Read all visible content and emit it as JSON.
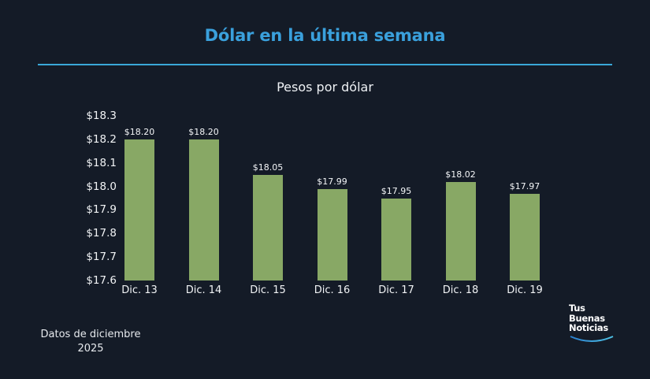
{
  "header": {
    "title": "Dólar en la última semana",
    "subtitle": "Pesos por dólar"
  },
  "footer": {
    "note_line1": "Datos de diciembre",
    "note_line2": "2025",
    "logo_line1": "Tus",
    "logo_line2": "Buenas",
    "logo_line3": "Noticias"
  },
  "colors": {
    "background": "#141b27",
    "title": "#3aa0dc",
    "rule": "#3aa8d8",
    "bar": "#88a865"
  },
  "chart_data": {
    "type": "bar",
    "title": "Dólar en la última semana",
    "subtitle": "Pesos por dólar",
    "xlabel": "",
    "ylabel": "",
    "categories": [
      "Dic. 13",
      "Dic. 14",
      "Dic. 15",
      "Dic. 16",
      "Dic. 17",
      "Dic. 18",
      "Dic. 19"
    ],
    "values": [
      18.2,
      18.2,
      18.05,
      17.99,
      17.95,
      18.02,
      17.97
    ],
    "value_labels": [
      "$18.20",
      "$18.20",
      "$18.05",
      "$17.99",
      "$17.95",
      "$18.02",
      "$17.97"
    ],
    "ylim": [
      17.6,
      18.3
    ],
    "yticks": [
      "$18.3",
      "$18.2",
      "$18.1",
      "$18.0",
      "$17.9",
      "$17.8",
      "$17.7",
      "$17.6"
    ],
    "ytick_values": [
      18.3,
      18.2,
      18.1,
      18.0,
      17.9,
      17.8,
      17.7,
      17.6
    ],
    "grid": false,
    "legend": "none",
    "annotations": [
      "Datos de diciembre 2025"
    ]
  }
}
